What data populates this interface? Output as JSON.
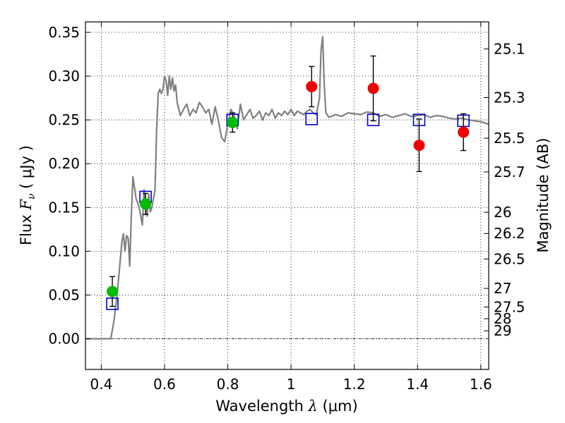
{
  "chart_data": {
    "type": "scatter",
    "title": "",
    "xlabel": {
      "prefix": "Wavelength  ",
      "lambda": "λ",
      "unit": " (μm)"
    },
    "ylabel": {
      "prefix": "Flux  ",
      "symbol": "F",
      "sub": "ν",
      "unit": "  ( μJy )"
    },
    "ylabel_right": "Magnitude (AB)",
    "xlim": [
      0.35,
      1.625
    ],
    "ylim": [
      -0.035,
      0.362
    ],
    "grid": true,
    "x_ticks": [
      {
        "value": 0.4,
        "label": "0.4"
      },
      {
        "value": 0.6,
        "label": "0.6"
      },
      {
        "value": 0.8,
        "label": "0.8"
      },
      {
        "value": 1.0,
        "label": "1"
      },
      {
        "value": 1.2,
        "label": "1.2"
      },
      {
        "value": 1.4,
        "label": "1.4"
      },
      {
        "value": 1.6,
        "label": "1.6"
      }
    ],
    "y_ticks": [
      {
        "value": 0.0,
        "label": "0.00"
      },
      {
        "value": 0.05,
        "label": "0.05"
      },
      {
        "value": 0.1,
        "label": "0.10"
      },
      {
        "value": 0.15,
        "label": "0.15"
      },
      {
        "value": 0.2,
        "label": "0.20"
      },
      {
        "value": 0.25,
        "label": "0.25"
      },
      {
        "value": 0.3,
        "label": "0.30"
      },
      {
        "value": 0.35,
        "label": "0.35"
      }
    ],
    "mag_ticks": [
      {
        "mag": 25.1,
        "label": "25.1"
      },
      {
        "mag": 25.3,
        "label": "25.3"
      },
      {
        "mag": 25.5,
        "label": "25.5"
      },
      {
        "mag": 25.7,
        "label": "25.7"
      },
      {
        "mag": 26,
        "label": "26"
      },
      {
        "mag": 26.2,
        "label": "26.2"
      },
      {
        "mag": 26.5,
        "label": "26.5"
      },
      {
        "mag": 27,
        "label": "27"
      },
      {
        "mag": 27.5,
        "label": "27.5"
      },
      {
        "mag": 28,
        "label": "28"
      },
      {
        "mag": 29,
        "label": "29"
      }
    ],
    "model_sed": {
      "color": "#808080",
      "x": [
        0.35,
        0.4,
        0.43,
        0.44,
        0.45,
        0.46,
        0.465,
        0.47,
        0.475,
        0.48,
        0.485,
        0.49,
        0.495,
        0.5,
        0.51,
        0.52,
        0.53,
        0.535,
        0.54,
        0.545,
        0.55,
        0.555,
        0.56,
        0.565,
        0.57,
        0.575,
        0.58,
        0.585,
        0.59,
        0.595,
        0.6,
        0.605,
        0.61,
        0.615,
        0.62,
        0.625,
        0.63,
        0.635,
        0.64,
        0.65,
        0.66,
        0.67,
        0.68,
        0.69,
        0.7,
        0.71,
        0.72,
        0.73,
        0.74,
        0.75,
        0.76,
        0.77,
        0.78,
        0.79,
        0.8,
        0.81,
        0.82,
        0.83,
        0.84,
        0.85,
        0.86,
        0.87,
        0.88,
        0.89,
        0.9,
        0.91,
        0.92,
        0.93,
        0.94,
        0.95,
        0.96,
        0.97,
        0.98,
        0.99,
        1.0,
        1.01,
        1.02,
        1.03,
        1.04,
        1.05,
        1.06,
        1.07,
        1.08,
        1.09,
        1.095,
        1.1,
        1.105,
        1.11,
        1.12,
        1.14,
        1.16,
        1.18,
        1.2,
        1.22,
        1.24,
        1.26,
        1.28,
        1.3,
        1.32,
        1.34,
        1.36,
        1.38,
        1.4,
        1.42,
        1.44,
        1.46,
        1.48,
        1.5,
        1.52,
        1.54,
        1.56,
        1.58,
        1.6,
        1.625
      ],
      "y": [
        0.0,
        0.0,
        0.0,
        0.02,
        0.05,
        0.09,
        0.11,
        0.12,
        0.1,
        0.118,
        0.115,
        0.083,
        0.14,
        0.185,
        0.16,
        0.15,
        0.13,
        0.17,
        0.15,
        0.14,
        0.165,
        0.145,
        0.15,
        0.16,
        0.17,
        0.24,
        0.28,
        0.285,
        0.28,
        0.285,
        0.3,
        0.295,
        0.278,
        0.3,
        0.285,
        0.298,
        0.283,
        0.29,
        0.27,
        0.255,
        0.262,
        0.268,
        0.255,
        0.262,
        0.258,
        0.27,
        0.265,
        0.258,
        0.262,
        0.245,
        0.265,
        0.25,
        0.23,
        0.225,
        0.245,
        0.262,
        0.255,
        0.24,
        0.268,
        0.25,
        0.256,
        0.262,
        0.252,
        0.255,
        0.26,
        0.25,
        0.258,
        0.255,
        0.262,
        0.252,
        0.258,
        0.255,
        0.26,
        0.256,
        0.262,
        0.255,
        0.26,
        0.258,
        0.256,
        0.26,
        0.262,
        0.258,
        0.256,
        0.275,
        0.33,
        0.345,
        0.29,
        0.258,
        0.253,
        0.256,
        0.254,
        0.258,
        0.257,
        0.256,
        0.259,
        0.258,
        0.254,
        0.256,
        0.253,
        0.255,
        0.257,
        0.254,
        0.255,
        0.256,
        0.253,
        0.255,
        0.254,
        0.252,
        0.251,
        0.252,
        0.25,
        0.249,
        0.248,
        0.245
      ]
    },
    "model_bands": {
      "color": "#0000cc",
      "x": [
        0.435,
        0.54,
        0.815,
        1.065,
        1.26,
        1.405,
        1.545
      ],
      "y": [
        0.04,
        0.162,
        0.25,
        0.251,
        0.25,
        0.25,
        0.249
      ]
    },
    "observed": [
      {
        "x": 0.435,
        "y": 0.054,
        "err": 0.017,
        "color": "#00bb00"
      },
      {
        "x": 0.54,
        "y": 0.154,
        "err": 0.012,
        "color": "#00bb00"
      },
      {
        "x": 0.815,
        "y": 0.247,
        "err": 0.011,
        "color": "#00bb00"
      },
      {
        "x": 1.065,
        "y": 0.288,
        "err": 0.023,
        "color": "#ee0000"
      },
      {
        "x": 1.26,
        "y": 0.286,
        "err": 0.037,
        "color": "#ee0000"
      },
      {
        "x": 1.405,
        "y": 0.221,
        "err": 0.03,
        "color": "#ee0000"
      },
      {
        "x": 1.545,
        "y": 0.236,
        "err": 0.021,
        "color": "#ee0000"
      }
    ]
  }
}
